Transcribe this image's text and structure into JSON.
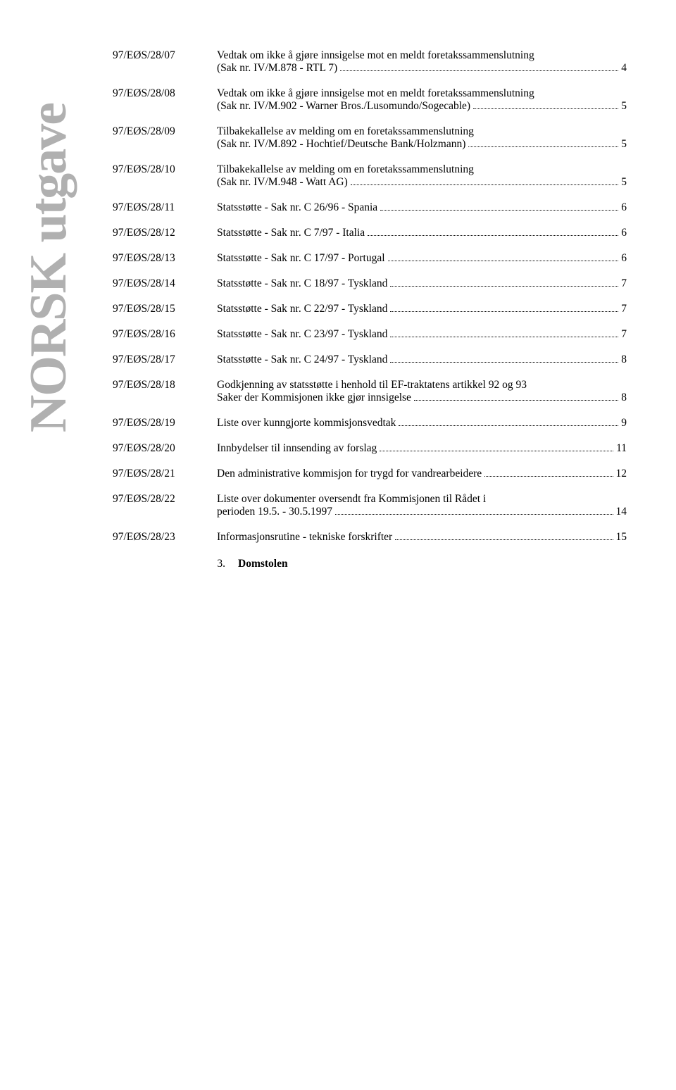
{
  "banner": "NORSK utgave",
  "entries": [
    {
      "id": "97/EØS/28/07",
      "lines": [
        "Vedtak om ikke å gjøre innsigelse mot en meldt foretakssammenslutning"
      ],
      "lastLine": "(Sak nr. IV/M.878 - RTL 7)",
      "page": "4"
    },
    {
      "id": "97/EØS/28/08",
      "lines": [
        "Vedtak om ikke å gjøre innsigelse mot en meldt foretakssammenslutning"
      ],
      "lastLine": "(Sak nr. IV/M.902 - Warner Bros./Lusomundo/Sogecable)",
      "page": "5"
    },
    {
      "id": "97/EØS/28/09",
      "lines": [
        "Tilbakekallelse av melding om en foretakssammenslutning"
      ],
      "lastLine": "(Sak nr. IV/M.892 - Hochtief/Deutsche Bank/Holzmann)",
      "page": "5"
    },
    {
      "id": "97/EØS/28/10",
      "lines": [
        "Tilbakekallelse av melding om en foretakssammenslutning"
      ],
      "lastLine": "(Sak nr. IV/M.948 - Watt AG)",
      "page": "5"
    },
    {
      "id": "97/EØS/28/11",
      "lines": [],
      "lastLine": "Statsstøtte - Sak nr. C 26/96 - Spania",
      "page": "6"
    },
    {
      "id": "97/EØS/28/12",
      "lines": [],
      "lastLine": "Statsstøtte - Sak nr. C 7/97 - Italia",
      "page": "6"
    },
    {
      "id": "97/EØS/28/13",
      "lines": [],
      "lastLine": "Statsstøtte - Sak nr. C 17/97 - Portugal",
      "page": "6"
    },
    {
      "id": "97/EØS/28/14",
      "lines": [],
      "lastLine": "Statsstøtte - Sak nr. C 18/97 - Tyskland",
      "page": "7"
    },
    {
      "id": "97/EØS/28/15",
      "lines": [],
      "lastLine": "Statsstøtte - Sak nr. C 22/97 - Tyskland",
      "page": "7"
    },
    {
      "id": "97/EØS/28/16",
      "lines": [],
      "lastLine": "Statsstøtte - Sak nr. C 23/97 - Tyskland",
      "page": "7"
    },
    {
      "id": "97/EØS/28/17",
      "lines": [],
      "lastLine": "Statsstøtte - Sak nr. C 24/97 - Tyskland",
      "page": "8"
    },
    {
      "id": "97/EØS/28/18",
      "lines": [
        "Godkjenning av statsstøtte i henhold til EF-traktatens artikkel 92 og 93"
      ],
      "lastLine": "Saker der Kommisjonen ikke gjør innsigelse",
      "page": "8"
    },
    {
      "id": "97/EØS/28/19",
      "lines": [],
      "lastLine": "Liste over kunngjorte kommisjonsvedtak",
      "page": "9"
    },
    {
      "id": "97/EØS/28/20",
      "lines": [],
      "lastLine": "Innbydelser til innsending av forslag",
      "page": "11"
    },
    {
      "id": "97/EØS/28/21",
      "lines": [],
      "lastLine": "Den administrative kommisjon for trygd for vandrearbeidere",
      "page": "12"
    },
    {
      "id": "97/EØS/28/22",
      "lines": [
        "Liste over dokumenter oversendt fra Kommisjonen til Rådet i"
      ],
      "lastLine": "perioden 19.5. - 30.5.1997",
      "page": "14"
    },
    {
      "id": "97/EØS/28/23",
      "lines": [],
      "lastLine": "Informasjonsrutine - tekniske forskrifter",
      "page": "15"
    }
  ],
  "section": {
    "num": "3.",
    "label": "Domstolen"
  },
  "colors": {
    "banner_text": "#b0b0b0",
    "body_text": "#000000",
    "background": "#ffffff"
  },
  "typography": {
    "body_fontsize": 15.5,
    "banner_fontsize": 74
  }
}
